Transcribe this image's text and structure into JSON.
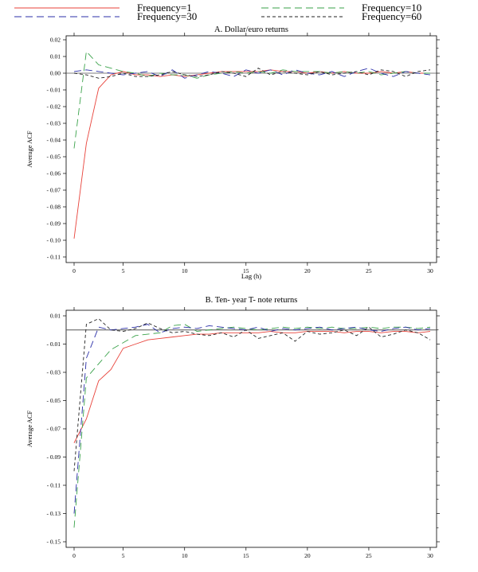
{
  "legend": [
    {
      "label": "Frequency=1",
      "color": "#e8423a",
      "dash": "solid"
    },
    {
      "label": "Frequency=10",
      "color": "#3aa24a",
      "dash": "long-dash"
    },
    {
      "label": "Frequency=30",
      "color": "#2b2fa8",
      "dash": "long-dash"
    },
    {
      "label": "Frequency=60",
      "color": "#222222",
      "dash": "short-dash"
    }
  ],
  "chart_data": [
    {
      "type": "line",
      "title": "A. Dollar/euro returns",
      "xlabel": "Lag (h)",
      "ylabel": "Average ACF",
      "xlim": [
        0,
        31
      ],
      "ylim": [
        -0.11,
        0.02
      ],
      "xticks": [
        0,
        5,
        10,
        15,
        20,
        25,
        30
      ],
      "yticks": [
        0.02,
        0.01,
        0.0,
        -0.01,
        -0.02,
        -0.03,
        -0.04,
        -0.05,
        -0.06,
        -0.07,
        -0.08,
        -0.09,
        -0.1,
        -0.11
      ],
      "ytick_labels": [
        "0.02",
        "0.01",
        "0.00",
        "- 0.01",
        "- 0.02",
        "- 0.03",
        "- 0.04",
        "- 0.05",
        "- 0.06",
        "- 0.07",
        "- 0.08",
        "- 0.09",
        "- 0.10",
        "- 0.11"
      ],
      "reference_line": 0.0,
      "x": [
        1,
        2,
        3,
        4,
        5,
        6,
        7,
        8,
        9,
        10,
        11,
        12,
        13,
        14,
        15,
        16,
        17,
        18,
        19,
        20,
        21,
        22,
        23,
        24,
        25,
        26,
        27,
        28,
        29,
        30
      ],
      "series": [
        {
          "name": "Frequency=1",
          "values": [
            -0.099,
            -0.042,
            -0.009,
            -0.001,
            0.001,
            -0.001,
            -0.001,
            -0.002,
            -0.001,
            -0.002,
            -0.001,
            0.0,
            0.001,
            0.001,
            0.001,
            0.001,
            0.002,
            0.001,
            0.001,
            0.0,
            0.001,
            0.0,
            0.001,
            0.0,
            0.0,
            0.001,
            0.0,
            0.001,
            0.0,
            0.0
          ]
        },
        {
          "name": "Frequency=10",
          "values": [
            -0.045,
            0.013,
            0.005,
            0.003,
            0.001,
            0.0,
            -0.002,
            0.0,
            -0.001,
            -0.001,
            -0.003,
            -0.001,
            0.0,
            0.001,
            0.0,
            0.001,
            0.0,
            0.002,
            0.001,
            0.001,
            0.001,
            0.0,
            0.001,
            0.0,
            0.001,
            -0.001,
            0.0,
            0.001,
            0.0,
            0.0
          ]
        },
        {
          "name": "Frequency=30",
          "values": [
            0.001,
            0.002,
            0.001,
            0.0,
            -0.001,
            0.0,
            0.001,
            -0.002,
            0.002,
            -0.003,
            -0.001,
            0.001,
            0.0,
            -0.002,
            0.002,
            0.0,
            0.002,
            -0.001,
            0.002,
            0.0,
            -0.001,
            0.001,
            -0.002,
            0.001,
            0.003,
            0.0,
            -0.002,
            0.001,
            0.0,
            -0.001
          ]
        },
        {
          "name": "Frequency=60",
          "values": [
            0.0,
            -0.001,
            -0.003,
            -0.002,
            0.0,
            -0.002,
            -0.002,
            -0.001,
            0.001,
            -0.001,
            -0.002,
            -0.001,
            0.001,
            0.0,
            -0.002,
            0.003,
            -0.001,
            0.001,
            0.0,
            -0.001,
            0.001,
            -0.001,
            0.0,
            0.001,
            -0.001,
            0.002,
            0.001,
            -0.002,
            0.001,
            0.002
          ]
        }
      ]
    },
    {
      "type": "line",
      "title": "B. Ten- year T- note returns",
      "xlabel": "",
      "ylabel": "Average ACF",
      "xlim": [
        0,
        31
      ],
      "ylim": [
        -0.15,
        0.01
      ],
      "xticks": [
        0,
        5,
        10,
        15,
        20,
        25,
        30
      ],
      "yticks": [
        0.01,
        -0.01,
        -0.03,
        -0.05,
        -0.07,
        -0.09,
        -0.11,
        -0.13,
        -0.15
      ],
      "ytick_labels": [
        "0.01",
        "- 0.01",
        "- 0.03",
        "- 0.05",
        "- 0.07",
        "- 0.09",
        "- 0.11",
        "- 0.13",
        "- 0.15"
      ],
      "reference_line": 0.0,
      "x": [
        1,
        2,
        3,
        4,
        5,
        6,
        7,
        8,
        9,
        10,
        11,
        12,
        13,
        14,
        15,
        16,
        17,
        18,
        19,
        20,
        21,
        22,
        23,
        24,
        25,
        26,
        27,
        28,
        29,
        30
      ],
      "series": [
        {
          "name": "Frequency=1",
          "values": [
            -0.08,
            -0.063,
            -0.036,
            -0.028,
            -0.013,
            -0.01,
            -0.007,
            -0.006,
            -0.005,
            -0.004,
            -0.003,
            -0.003,
            -0.002,
            -0.002,
            -0.002,
            -0.002,
            -0.001,
            -0.002,
            -0.002,
            -0.001,
            -0.001,
            -0.001,
            -0.002,
            -0.001,
            -0.001,
            -0.002,
            -0.001,
            -0.001,
            -0.002,
            -0.001
          ]
        },
        {
          "name": "Frequency=10",
          "values": [
            -0.14,
            -0.034,
            -0.024,
            -0.014,
            -0.009,
            -0.004,
            -0.003,
            -0.002,
            0.003,
            0.004,
            -0.001,
            0.0,
            0.001,
            0.002,
            0.001,
            0.0,
            0.001,
            0.002,
            0.001,
            0.002,
            0.001,
            0.002,
            0.001,
            0.001,
            0.002,
            0.001,
            0.002,
            0.002,
            0.001,
            0.002
          ]
        },
        {
          "name": "Frequency=30",
          "values": [
            -0.13,
            -0.02,
            0.002,
            0.0,
            0.001,
            0.002,
            0.004,
            -0.002,
            0.001,
            0.002,
            0.001,
            0.003,
            0.002,
            0.001,
            0.0,
            0.002,
            -0.001,
            0.001,
            0.0,
            0.001,
            0.002,
            0.0,
            0.001,
            0.002,
            0.0,
            -0.001,
            0.001,
            0.002,
            0.0,
            0.001
          ]
        },
        {
          "name": "Frequency=60",
          "values": [
            -0.1,
            0.004,
            0.008,
            0.0,
            -0.001,
            0.001,
            0.005,
            0.001,
            -0.002,
            -0.001,
            -0.003,
            -0.004,
            -0.002,
            -0.005,
            0.0,
            -0.006,
            -0.004,
            -0.002,
            -0.008,
            -0.001,
            -0.003,
            -0.002,
            0.0,
            -0.004,
            0.002,
            -0.005,
            -0.003,
            0.0,
            -0.002,
            -0.007
          ]
        }
      ]
    }
  ]
}
